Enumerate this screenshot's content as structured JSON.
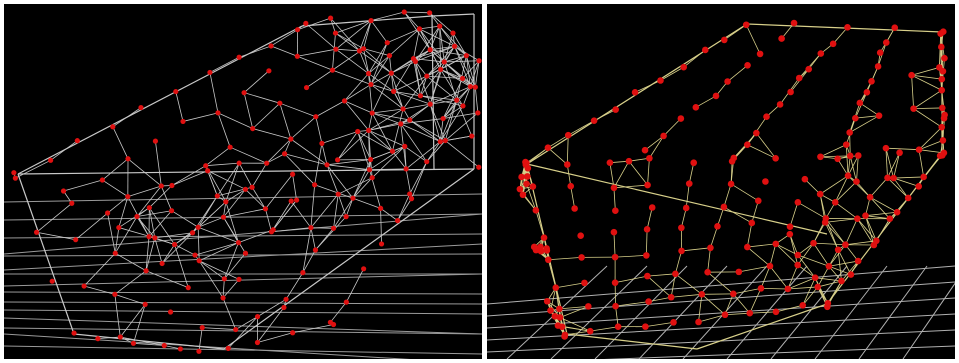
{
  "figure": {
    "background": "#000000",
    "panels": [
      {
        "id": "left",
        "lattice_color": "#c8c8c8",
        "node_color": "#e01010",
        "floor_grid_color": "#9a9a9a"
      },
      {
        "id": "right",
        "lattice_color": "#d8d08a",
        "node_color": "#e01010",
        "floor_grid_color": "#b0b0b0"
      }
    ]
  }
}
